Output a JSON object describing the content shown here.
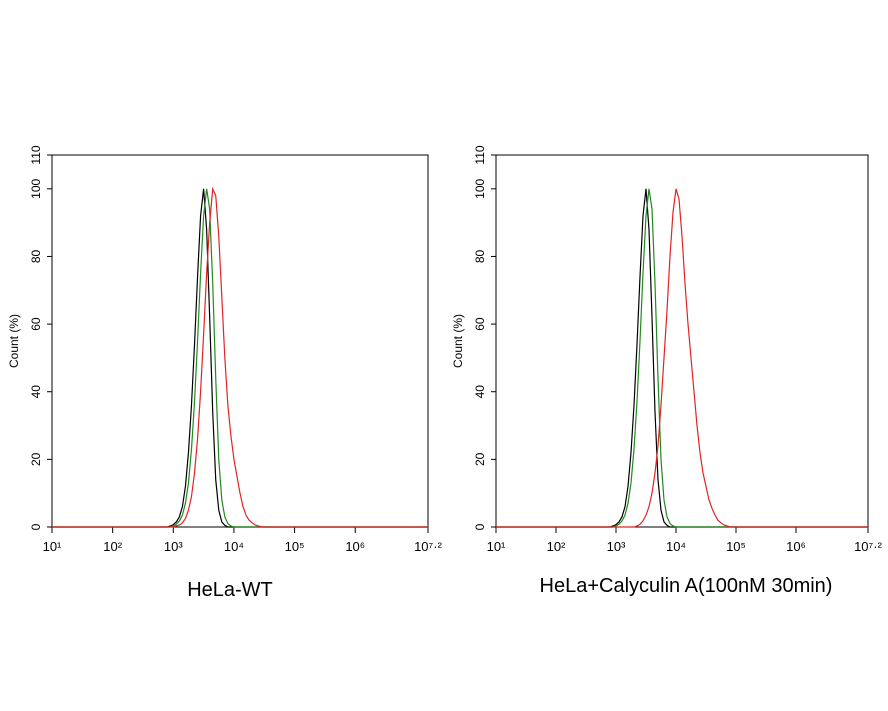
{
  "chart_data": [
    {
      "type": "line",
      "title": "HeLa-WT",
      "ylabel": "Count (%)",
      "xscale": "log",
      "xlim": [
        10,
        15848932
      ],
      "ylim": [
        0,
        110
      ],
      "xticks": [
        {
          "value": 10,
          "label": "10¹"
        },
        {
          "value": 100,
          "label": "10²"
        },
        {
          "value": 1000,
          "label": "10³"
        },
        {
          "value": 10000,
          "label": "10⁴"
        },
        {
          "value": 100000,
          "label": "10⁵"
        },
        {
          "value": 1000000,
          "label": "10⁶"
        },
        {
          "value": 15848932,
          "label": "10⁷·²"
        }
      ],
      "yticks": [
        0,
        20,
        40,
        60,
        80,
        100,
        110
      ],
      "x": [
        10,
        631,
        708,
        794,
        891,
        1000,
        1122,
        1259,
        1413,
        1585,
        1778,
        1995,
        2239,
        2512,
        2818,
        3162,
        3548,
        3981,
        4467,
        5012,
        5623,
        6310,
        7079,
        7943,
        8913,
        10000,
        11220,
        12589,
        14125,
        15849,
        17783,
        19953,
        22387,
        25119,
        28184,
        31623,
        35481,
        39811,
        44668,
        50119,
        56234,
        63096,
        70795,
        79433,
        89125,
        100000,
        15848932
      ],
      "series": [
        {
          "color": "#000000",
          "values": [
            0,
            0,
            0,
            0,
            0.3,
            0.7,
            1.5,
            3,
            6,
            12,
            22,
            36,
            54,
            74,
            92,
            100,
            88,
            62,
            34,
            14,
            5,
            1.5,
            0.5,
            0,
            0,
            0,
            0,
            0,
            0,
            0,
            0,
            0,
            0,
            0,
            0,
            0,
            0,
            0,
            0,
            0,
            0,
            0,
            0,
            0,
            0,
            0,
            0
          ]
        },
        {
          "color": "#1f8a1f",
          "values": [
            0,
            0,
            0,
            0,
            0,
            0.3,
            0.8,
            1.8,
            3.5,
            7,
            13,
            23,
            37,
            55,
            75,
            92,
            100,
            94,
            72,
            44,
            20,
            8,
            3,
            1,
            0.3,
            0,
            0,
            0,
            0,
            0,
            0,
            0,
            0,
            0,
            0,
            0,
            0,
            0,
            0,
            0,
            0,
            0,
            0,
            0,
            0,
            0,
            0
          ]
        },
        {
          "color": "#e02424",
          "values": [
            0,
            0,
            0,
            0,
            0,
            0,
            0.3,
            0.6,
            1.2,
            2.5,
            5,
            9,
            16,
            26,
            40,
            57,
            75,
            90,
            100,
            98,
            86,
            68,
            50,
            36,
            27,
            20,
            15,
            10,
            6,
            3.5,
            2,
            1.2,
            0.6,
            0.3,
            0.1,
            0,
            0,
            0,
            0,
            0,
            0,
            0,
            0,
            0,
            0,
            0,
            0
          ]
        }
      ]
    },
    {
      "type": "line",
      "title": "HeLa+Calyculin A(100nM 30min)",
      "ylabel": "Count (%)",
      "xscale": "log",
      "xlim": [
        10,
        15848932
      ],
      "ylim": [
        0,
        110
      ],
      "xticks": [
        {
          "value": 10,
          "label": "10¹"
        },
        {
          "value": 100,
          "label": "10²"
        },
        {
          "value": 1000,
          "label": "10³"
        },
        {
          "value": 10000,
          "label": "10⁴"
        },
        {
          "value": 100000,
          "label": "10⁵"
        },
        {
          "value": 1000000,
          "label": "10⁶"
        },
        {
          "value": 15848932,
          "label": "10⁷·²"
        }
      ],
      "yticks": [
        0,
        20,
        40,
        60,
        80,
        100,
        110
      ],
      "x": [
        10,
        631,
        708,
        794,
        891,
        1000,
        1122,
        1259,
        1413,
        1585,
        1778,
        1995,
        2239,
        2512,
        2818,
        3162,
        3548,
        3981,
        4467,
        5012,
        5623,
        6310,
        7079,
        7943,
        8913,
        10000,
        11220,
        12589,
        14125,
        15849,
        17783,
        19953,
        22387,
        25119,
        28184,
        31623,
        35481,
        39811,
        44668,
        50119,
        56234,
        63096,
        70795,
        79433,
        89125,
        100000,
        15848932
      ],
      "series": [
        {
          "color": "#000000",
          "values": [
            0,
            0,
            0,
            0,
            0.3,
            0.7,
            1.5,
            3,
            6,
            12,
            22,
            36,
            54,
            74,
            92,
            100,
            88,
            62,
            34,
            14,
            5,
            1.5,
            0.5,
            0,
            0,
            0,
            0,
            0,
            0,
            0,
            0,
            0,
            0,
            0,
            0,
            0,
            0,
            0,
            0,
            0,
            0,
            0,
            0,
            0,
            0,
            0,
            0
          ]
        },
        {
          "color": "#1f8a1f",
          "values": [
            0,
            0,
            0,
            0,
            0,
            0.3,
            0.8,
            1.8,
            3.5,
            7,
            13,
            23,
            37,
            55,
            75,
            92,
            100,
            94,
            72,
            44,
            20,
            8,
            3,
            1,
            0.3,
            0,
            0,
            0,
            0,
            0,
            0,
            0,
            0,
            0,
            0,
            0,
            0,
            0,
            0,
            0,
            0,
            0,
            0,
            0,
            0,
            0,
            0
          ]
        },
        {
          "color": "#e02424",
          "values": [
            0,
            0,
            0,
            0,
            0,
            0,
            0,
            0,
            0,
            0,
            0,
            0,
            0.3,
            0.8,
            1.8,
            3.5,
            6,
            10,
            16,
            24,
            36,
            50,
            64,
            80,
            93,
            100,
            97,
            86,
            72,
            60,
            50,
            40,
            30,
            22,
            16,
            12,
            8,
            5.5,
            3.5,
            2,
            1.2,
            0.6,
            0.3,
            0.1,
            0,
            0,
            0
          ]
        }
      ]
    }
  ]
}
